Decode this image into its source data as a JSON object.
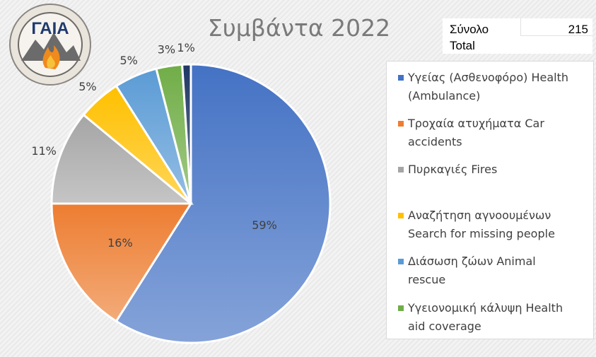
{
  "title": "Συμβάντα 2022",
  "logo_text": "ΓΑΙΑ",
  "total": {
    "label_gr": "Σύνολο",
    "label_en": "Total",
    "value": "215"
  },
  "colors": {
    "health": "#4472c4",
    "car": "#ed7d31",
    "fires": "#a5a5a5",
    "search": "#ffc000",
    "animal": "#5b9bd5",
    "aid": "#70ad47",
    "other": "#1f3864"
  },
  "chart_data": {
    "type": "pie",
    "title": "Συμβάντα 2022",
    "slices": [
      {
        "key": "health",
        "label": "Υγείας (Ασθενοφόρο) Health (Ambulance)",
        "value": 59,
        "display": "59%"
      },
      {
        "key": "car",
        "label": "Τροχαία ατυχήματα Car accidents",
        "value": 16,
        "display": "16%"
      },
      {
        "key": "fires",
        "label": "Πυρκαγιές Fires",
        "value": 11,
        "display": "11%"
      },
      {
        "key": "search",
        "label": "Αναζήτηση αγνοουμένων Search for missing people",
        "value": 5,
        "display": "5%"
      },
      {
        "key": "animal",
        "label": "Διάσωση ζώων Animal rescue",
        "value": 5,
        "display": "5%"
      },
      {
        "key": "aid",
        "label": "Υγειονομική κάλυψη Health aid coverage",
        "value": 3,
        "display": "3%"
      },
      {
        "key": "other",
        "label": "",
        "value": 1,
        "display": "1%"
      }
    ],
    "legend_position": "right"
  },
  "legend": [
    {
      "key": "health",
      "line1": "Υγείας (Ασθενοφόρο) Health",
      "line2": "(Ambulance)"
    },
    {
      "key": "car",
      "line1": "Τροχαία ατυχήματα Car",
      "line2": "accidents"
    },
    {
      "key": "fires",
      "line1": "Πυρκαγιές Fires",
      "line2": ""
    },
    {
      "key": "search",
      "line1": "Αναζήτηση αγνοουμένων",
      "line2": "Search for missing people"
    },
    {
      "key": "animal",
      "line1": "Διάσωση ζώων Animal",
      "line2": "rescue"
    },
    {
      "key": "aid",
      "line1": "Υγειονομική κάλυψη Health",
      "line2": "aid coverage"
    }
  ]
}
